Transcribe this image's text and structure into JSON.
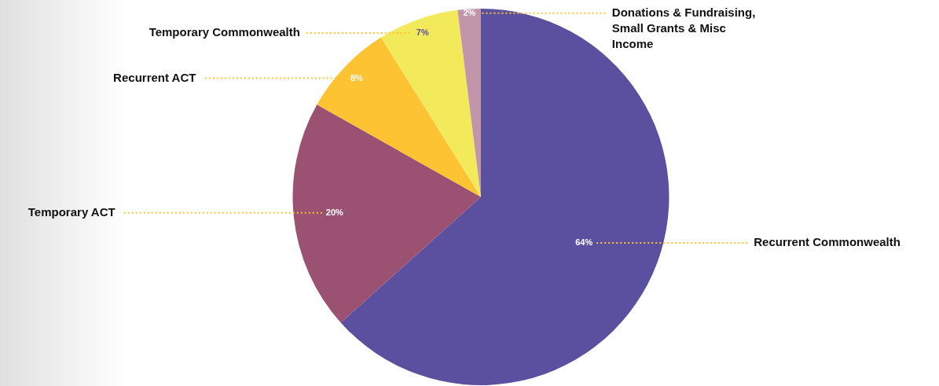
{
  "chart_data": {
    "type": "pie",
    "categories": [
      "Recurrent Commonwealth",
      "Temporary ACT",
      "Recurrent ACT",
      "Temporary Commonwealth",
      "Donations & Fundraising, Small Grants & Misc Income"
    ],
    "values": [
      64,
      20,
      8,
      7,
      2
    ],
    "colors": [
      "#5b4f9f",
      "#9b5171",
      "#fec333",
      "#f2ea5a",
      "#c196aa"
    ],
    "value_labels": [
      "64%",
      "20%",
      "8%",
      "7%",
      "2%"
    ],
    "legend": false
  }
}
